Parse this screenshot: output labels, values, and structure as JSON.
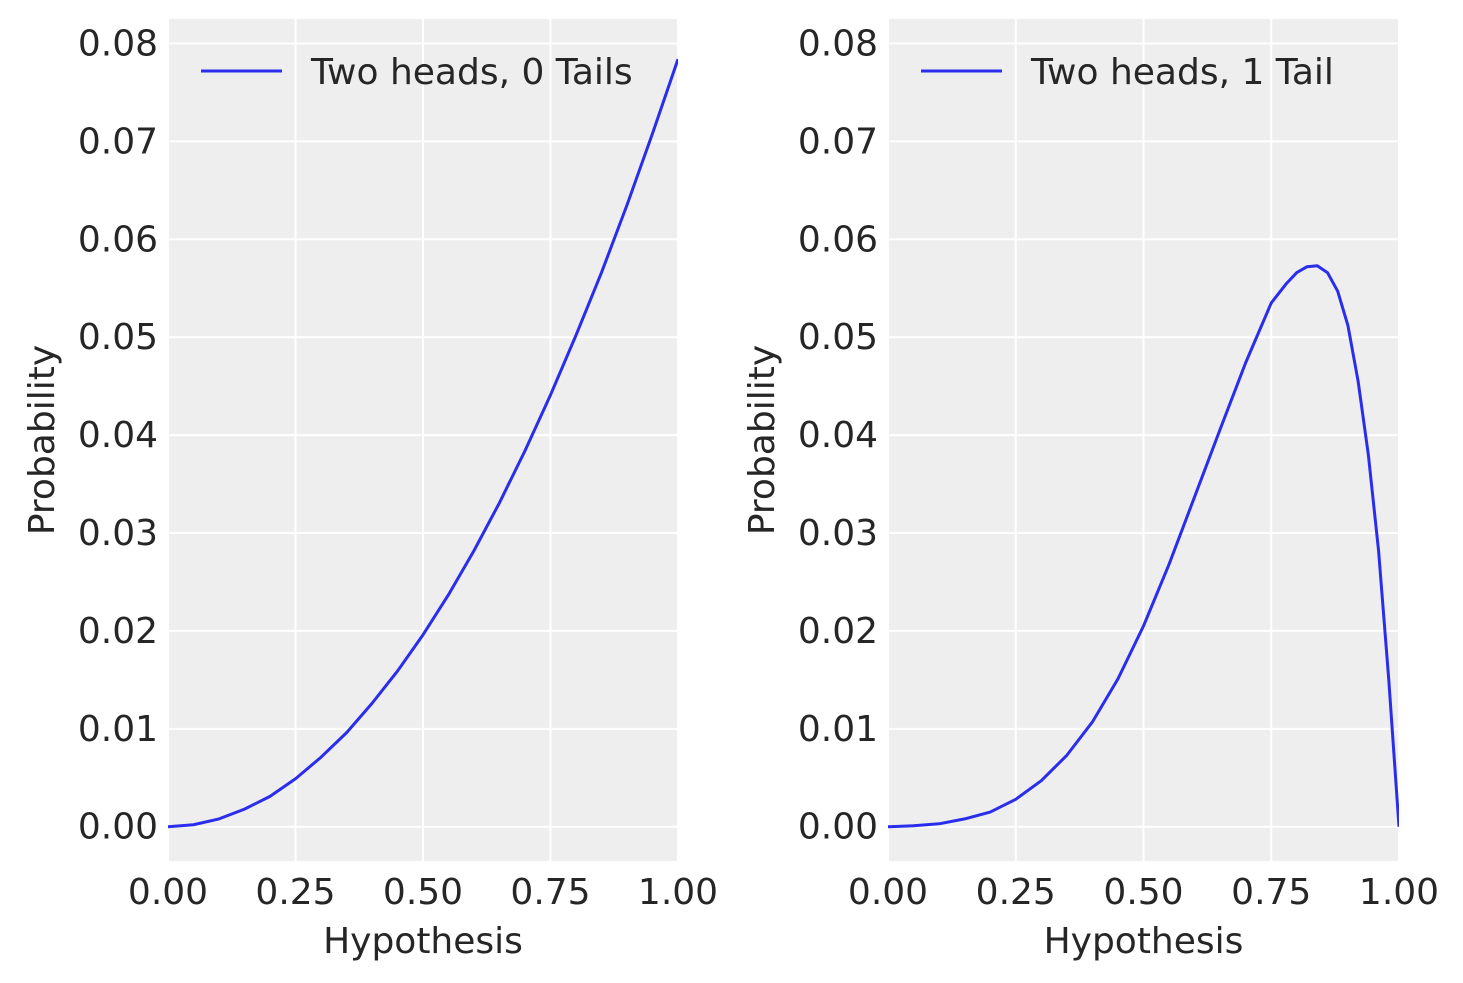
{
  "colors": {
    "background": "#ffffff",
    "plot_bg": "#eeeeee",
    "grid": "#ffffff",
    "line": "#2a2eec",
    "text": "#262626"
  },
  "chart_data": [
    {
      "type": "line",
      "xlabel": "Hypothesis",
      "ylabel": "Probability",
      "xlim": [
        0,
        1
      ],
      "ylim": [
        -0.0035,
        0.0825
      ],
      "xticks": [
        "0.00",
        "0.25",
        "0.50",
        "0.75",
        "1.00"
      ],
      "yticks": [
        "0.00",
        "0.01",
        "0.02",
        "0.03",
        "0.04",
        "0.05",
        "0.06",
        "0.07",
        "0.08"
      ],
      "grid": true,
      "legend_position": "top",
      "series": [
        {
          "name": "Two heads, 0 Tails",
          "x": [
            0,
            0.05,
            0.1,
            0.15,
            0.2,
            0.25,
            0.3,
            0.35,
            0.4,
            0.45,
            0.5,
            0.55,
            0.6,
            0.65,
            0.7,
            0.75,
            0.8,
            0.85,
            0.9,
            0.95,
            1.0
          ],
          "y": [
            0,
            0.0002,
            0.0008,
            0.0018,
            0.0031,
            0.0049,
            0.0071,
            0.0096,
            0.0126,
            0.0159,
            0.0196,
            0.0237,
            0.0282,
            0.0331,
            0.0384,
            0.0441,
            0.0502,
            0.0566,
            0.0635,
            0.0708,
            0.0784
          ]
        }
      ]
    },
    {
      "type": "line",
      "xlabel": "Hypothesis",
      "ylabel": "Probability",
      "xlim": [
        0,
        1
      ],
      "ylim": [
        -0.0035,
        0.0825
      ],
      "xticks": [
        "0.00",
        "0.25",
        "0.50",
        "0.75",
        "1.00"
      ],
      "yticks": [
        "0.00",
        "0.01",
        "0.02",
        "0.03",
        "0.04",
        "0.05",
        "0.06",
        "0.07",
        "0.08"
      ],
      "grid": true,
      "legend_position": "top",
      "series": [
        {
          "name": "Two heads, 1 Tail",
          "x": [
            0,
            0.05,
            0.1,
            0.15,
            0.2,
            0.25,
            0.3,
            0.35,
            0.4,
            0.45,
            0.5,
            0.55,
            0.6,
            0.65,
            0.7,
            0.75,
            0.78,
            0.8,
            0.82,
            0.84,
            0.86,
            0.88,
            0.9,
            0.92,
            0.94,
            0.96,
            0.98,
            1.0
          ],
          "y": [
            0,
            0.0001,
            0.0003,
            0.0008,
            0.0015,
            0.0028,
            0.0047,
            0.0073,
            0.0107,
            0.0151,
            0.0205,
            0.0268,
            0.0337,
            0.0406,
            0.0474,
            0.0535,
            0.0555,
            0.0566,
            0.0572,
            0.0573,
            0.0566,
            0.0547,
            0.0512,
            0.0455,
            0.038,
            0.0282,
            0.015,
            0
          ]
        }
      ]
    }
  ]
}
